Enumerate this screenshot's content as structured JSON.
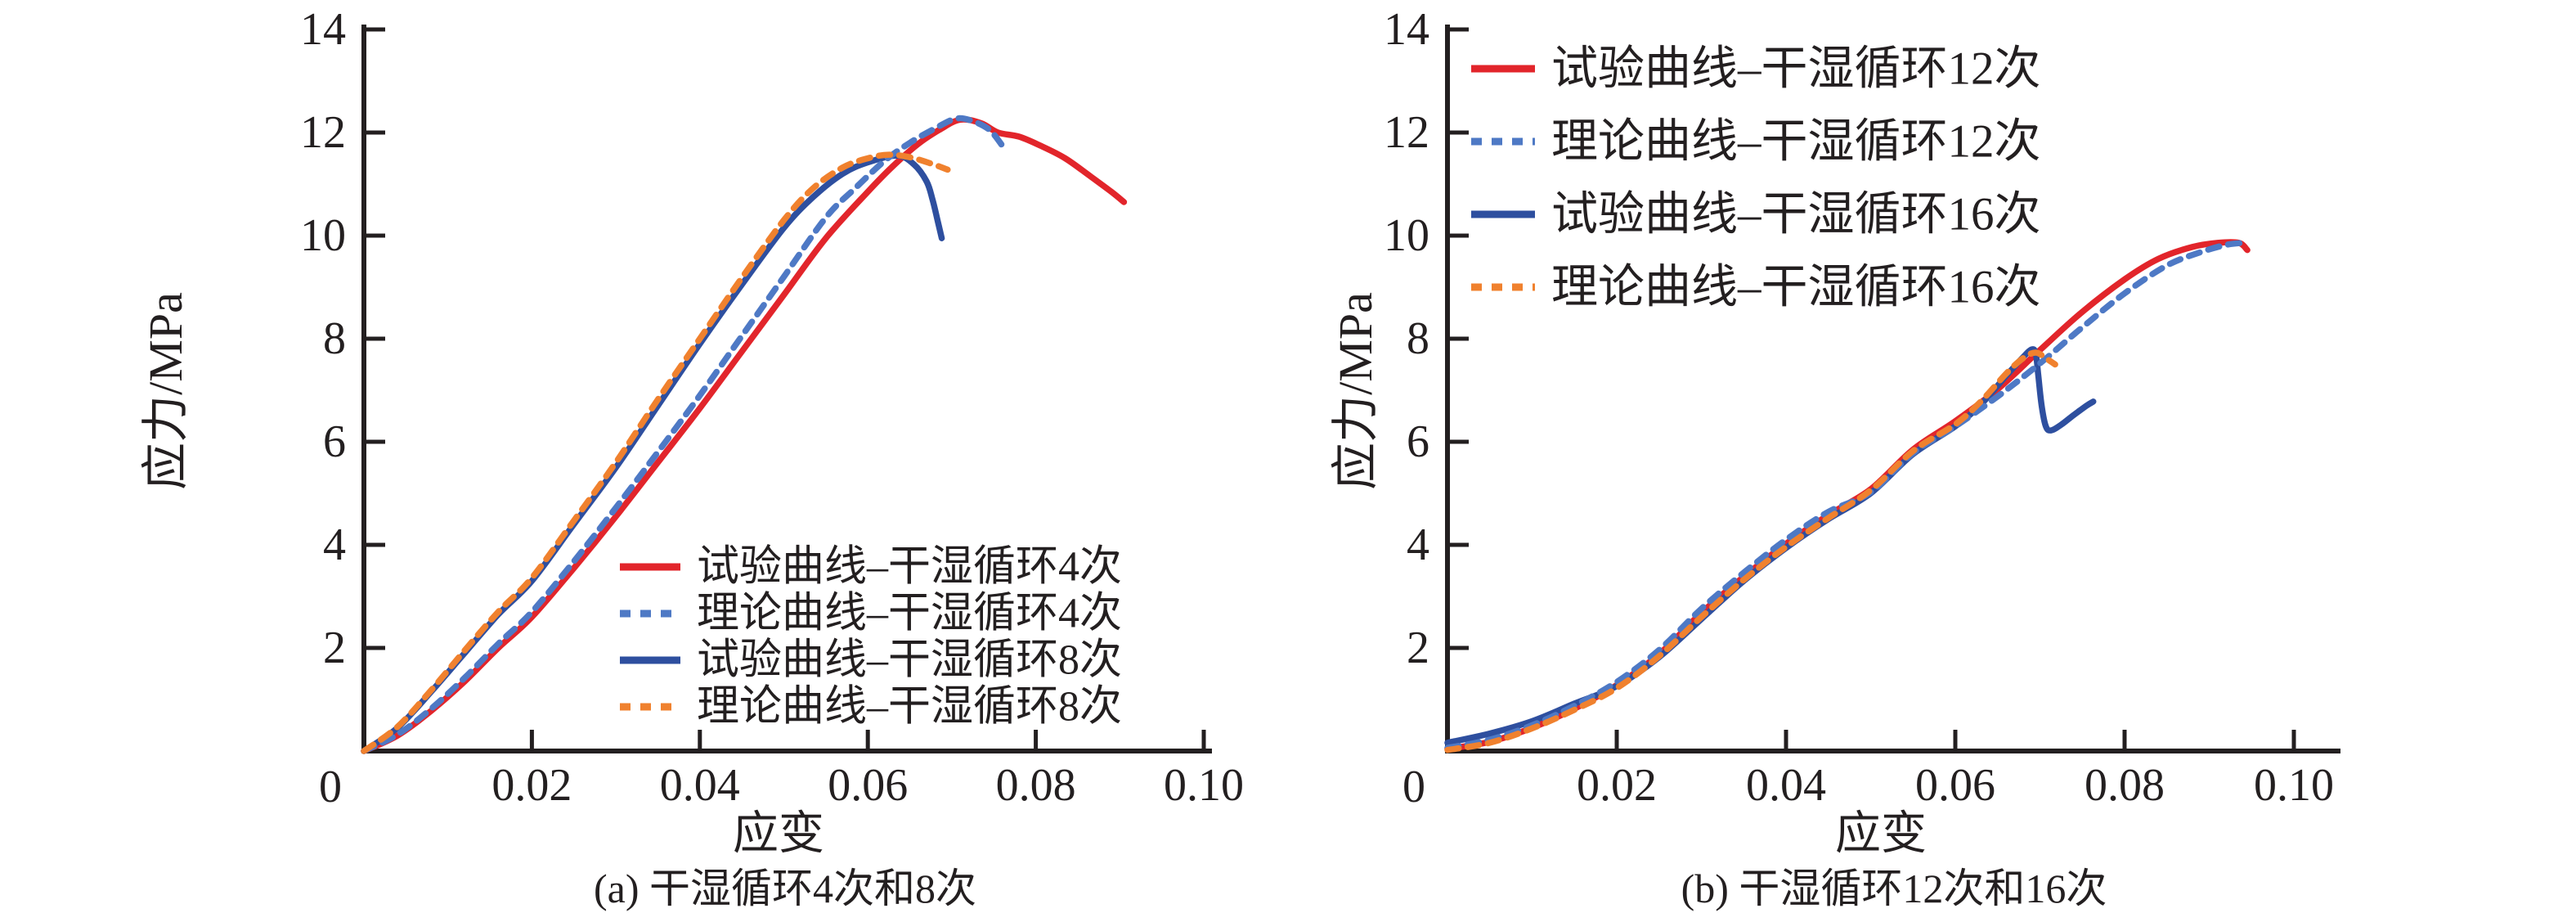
{
  "figure": {
    "background": "#ffffff",
    "ink_color": "#231f20"
  },
  "chart_data": [
    {
      "type": "line",
      "panel": "a",
      "caption": "(a) 干湿循环4次和8次",
      "xlabel": "应变",
      "ylabel": "应力/MPa",
      "xlim": [
        0,
        0.1
      ],
      "ylim": [
        0,
        14
      ],
      "origin_label": "0",
      "xticks": [
        {
          "value": 0.02,
          "label": "0.02"
        },
        {
          "value": 0.04,
          "label": "0.04"
        },
        {
          "value": 0.06,
          "label": "0.06"
        },
        {
          "value": 0.08,
          "label": "0.08"
        },
        {
          "value": 0.1,
          "label": "0.10"
        }
      ],
      "yticks": [
        {
          "value": 2,
          "label": "2"
        },
        {
          "value": 4,
          "label": "4"
        },
        {
          "value": 6,
          "label": "6"
        },
        {
          "value": 8,
          "label": "8"
        },
        {
          "value": 10,
          "label": "10"
        },
        {
          "value": 12,
          "label": "12"
        },
        {
          "value": 14,
          "label": "14"
        }
      ],
      "grid": false,
      "legend_position": "lower-right",
      "legend": [
        {
          "label": "试验曲线–干湿循环4次",
          "color": "#e2252b",
          "style": "solid"
        },
        {
          "label": "理论曲线–干湿循环4次",
          "color": "#4e79c5",
          "style": "dashed"
        },
        {
          "label": "试验曲线–干湿循环8次",
          "color": "#2e4f9f",
          "style": "solid"
        },
        {
          "label": "理论曲线–干湿循环8次",
          "color": "#f0812e",
          "style": "dashed"
        }
      ],
      "series": [
        {
          "name": "试验曲线–干湿循环4次",
          "role": "experimental",
          "cycles": 4,
          "color": "#e2252b",
          "style": "solid",
          "points": [
            [
              0,
              0
            ],
            [
              0.004,
              0.3
            ],
            [
              0.008,
              0.78
            ],
            [
              0.012,
              1.35
            ],
            [
              0.016,
              2.0
            ],
            [
              0.02,
              2.6
            ],
            [
              0.025,
              3.55
            ],
            [
              0.03,
              4.55
            ],
            [
              0.035,
              5.6
            ],
            [
              0.04,
              6.65
            ],
            [
              0.045,
              7.75
            ],
            [
              0.05,
              8.85
            ],
            [
              0.055,
              9.95
            ],
            [
              0.06,
              10.85
            ],
            [
              0.063,
              11.35
            ],
            [
              0.066,
              11.78
            ],
            [
              0.0685,
              12.05
            ],
            [
              0.071,
              12.25
            ],
            [
              0.0735,
              12.18
            ],
            [
              0.0755,
              12.0
            ],
            [
              0.078,
              11.92
            ],
            [
              0.0805,
              11.75
            ],
            [
              0.0835,
              11.5
            ],
            [
              0.0865,
              11.15
            ],
            [
              0.089,
              10.85
            ],
            [
              0.0905,
              10.65
            ]
          ]
        },
        {
          "name": "理论曲线–干湿循环4次",
          "role": "theoretical",
          "cycles": 4,
          "color": "#4e79c5",
          "style": "dashed",
          "points": [
            [
              0,
              0
            ],
            [
              0.004,
              0.32
            ],
            [
              0.008,
              0.82
            ],
            [
              0.012,
              1.42
            ],
            [
              0.016,
              2.08
            ],
            [
              0.02,
              2.7
            ],
            [
              0.025,
              3.68
            ],
            [
              0.03,
              4.72
            ],
            [
              0.035,
              5.8
            ],
            [
              0.04,
              6.9
            ],
            [
              0.045,
              8.05
            ],
            [
              0.05,
              9.2
            ],
            [
              0.055,
              10.35
            ],
            [
              0.0585,
              10.92
            ],
            [
              0.062,
              11.45
            ],
            [
              0.065,
              11.8
            ],
            [
              0.068,
              12.08
            ],
            [
              0.0705,
              12.27
            ],
            [
              0.0725,
              12.22
            ],
            [
              0.0745,
              12.05
            ],
            [
              0.076,
              11.75
            ]
          ]
        },
        {
          "name": "试验曲线–干湿循环8次",
          "role": "experimental",
          "cycles": 8,
          "color": "#2e4f9f",
          "style": "solid",
          "points": [
            [
              0,
              0
            ],
            [
              0.004,
              0.45
            ],
            [
              0.008,
              1.15
            ],
            [
              0.012,
              1.9
            ],
            [
              0.016,
              2.65
            ],
            [
              0.02,
              3.3
            ],
            [
              0.025,
              4.4
            ],
            [
              0.03,
              5.5
            ],
            [
              0.035,
              6.7
            ],
            [
              0.04,
              7.9
            ],
            [
              0.045,
              9.05
            ],
            [
              0.05,
              10.15
            ],
            [
              0.0535,
              10.75
            ],
            [
              0.057,
              11.2
            ],
            [
              0.06,
              11.42
            ],
            [
              0.0635,
              11.55
            ],
            [
              0.0655,
              11.38
            ],
            [
              0.067,
              11.05
            ],
            [
              0.0677,
              10.7
            ],
            [
              0.0683,
              10.3
            ],
            [
              0.0688,
              9.95
            ]
          ]
        },
        {
          "name": "理论曲线–干湿循环8次",
          "role": "theoretical",
          "cycles": 8,
          "color": "#f0812e",
          "style": "dashed",
          "points": [
            [
              0,
              0
            ],
            [
              0.004,
              0.47
            ],
            [
              0.008,
              1.18
            ],
            [
              0.012,
              1.95
            ],
            [
              0.016,
              2.7
            ],
            [
              0.02,
              3.36
            ],
            [
              0.025,
              4.47
            ],
            [
              0.03,
              5.6
            ],
            [
              0.035,
              6.82
            ],
            [
              0.04,
              8.0
            ],
            [
              0.045,
              9.18
            ],
            [
              0.05,
              10.3
            ],
            [
              0.0535,
              10.92
            ],
            [
              0.057,
              11.32
            ],
            [
              0.06,
              11.5
            ],
            [
              0.0625,
              11.57
            ],
            [
              0.065,
              11.52
            ],
            [
              0.0675,
              11.4
            ],
            [
              0.0695,
              11.28
            ]
          ]
        }
      ]
    },
    {
      "type": "line",
      "panel": "b",
      "caption": "(b) 干湿循环12次和16次",
      "xlabel": "应变",
      "ylabel": "应力/MPa",
      "xlim": [
        0,
        0.1
      ],
      "ylim": [
        0,
        14
      ],
      "origin_label": "0",
      "xticks": [
        {
          "value": 0.02,
          "label": "0.02"
        },
        {
          "value": 0.04,
          "label": "0.04"
        },
        {
          "value": 0.06,
          "label": "0.06"
        },
        {
          "value": 0.08,
          "label": "0.08"
        },
        {
          "value": 0.1,
          "label": "0.10"
        }
      ],
      "yticks": [
        {
          "value": 2,
          "label": "2"
        },
        {
          "value": 4,
          "label": "4"
        },
        {
          "value": 6,
          "label": "6"
        },
        {
          "value": 8,
          "label": "8"
        },
        {
          "value": 10,
          "label": "10"
        },
        {
          "value": 12,
          "label": "12"
        },
        {
          "value": 14,
          "label": "14"
        }
      ],
      "grid": false,
      "legend_position": "upper-left",
      "legend": [
        {
          "label": "试验曲线–干湿循环12次",
          "color": "#e2252b",
          "style": "solid"
        },
        {
          "label": "理论曲线–干湿循环12次",
          "color": "#4e79c5",
          "style": "dashed"
        },
        {
          "label": "试验曲线–干湿循环16次",
          "color": "#2e4f9f",
          "style": "solid"
        },
        {
          "label": "理论曲线–干湿循环16次",
          "color": "#f0812e",
          "style": "dashed"
        }
      ],
      "series": [
        {
          "name": "试验曲线–干湿循环12次",
          "role": "experimental",
          "cycles": 12,
          "color": "#e2252b",
          "style": "solid",
          "points": [
            [
              0,
              0.04
            ],
            [
              0.005,
              0.18
            ],
            [
              0.01,
              0.45
            ],
            [
              0.015,
              0.82
            ],
            [
              0.02,
              1.28
            ],
            [
              0.025,
              1.88
            ],
            [
              0.03,
              2.68
            ],
            [
              0.035,
              3.38
            ],
            [
              0.04,
              4.02
            ],
            [
              0.045,
              4.58
            ],
            [
              0.05,
              5.08
            ],
            [
              0.055,
              5.85
            ],
            [
              0.06,
              6.4
            ],
            [
              0.065,
              7.02
            ],
            [
              0.07,
              7.78
            ],
            [
              0.075,
              8.52
            ],
            [
              0.08,
              9.15
            ],
            [
              0.084,
              9.55
            ],
            [
              0.088,
              9.78
            ],
            [
              0.091,
              9.86
            ],
            [
              0.0935,
              9.86
            ],
            [
              0.0945,
              9.72
            ]
          ]
        },
        {
          "name": "理论曲线–干湿循环12次",
          "role": "theoretical",
          "cycles": 12,
          "color": "#4e79c5",
          "style": "dashed",
          "points": [
            [
              0,
              0.06
            ],
            [
              0.005,
              0.22
            ],
            [
              0.01,
              0.5
            ],
            [
              0.015,
              0.88
            ],
            [
              0.02,
              1.34
            ],
            [
              0.025,
              1.96
            ],
            [
              0.03,
              2.76
            ],
            [
              0.035,
              3.46
            ],
            [
              0.04,
              4.1
            ],
            [
              0.045,
              4.64
            ],
            [
              0.05,
              5.02
            ],
            [
              0.055,
              5.78
            ],
            [
              0.06,
              6.3
            ],
            [
              0.065,
              6.88
            ],
            [
              0.07,
              7.52
            ],
            [
              0.075,
              8.22
            ],
            [
              0.08,
              8.88
            ],
            [
              0.085,
              9.42
            ],
            [
              0.089,
              9.68
            ],
            [
              0.092,
              9.82
            ],
            [
              0.094,
              9.86
            ]
          ]
        },
        {
          "name": "试验曲线–干湿循环16次",
          "role": "experimental",
          "cycles": 16,
          "color": "#2e4f9f",
          "style": "solid",
          "points": [
            [
              0,
              0.16
            ],
            [
              0.005,
              0.34
            ],
            [
              0.01,
              0.58
            ],
            [
              0.015,
              0.92
            ],
            [
              0.02,
              1.26
            ],
            [
              0.025,
              1.82
            ],
            [
              0.03,
              2.56
            ],
            [
              0.035,
              3.3
            ],
            [
              0.04,
              3.94
            ],
            [
              0.045,
              4.5
            ],
            [
              0.05,
              5.0
            ],
            [
              0.055,
              5.76
            ],
            [
              0.06,
              6.3
            ],
            [
              0.063,
              6.72
            ],
            [
              0.066,
              7.28
            ],
            [
              0.068,
              7.64
            ],
            [
              0.069,
              7.79
            ],
            [
              0.0695,
              7.72
            ],
            [
              0.0698,
              7.3
            ],
            [
              0.0702,
              6.7
            ],
            [
              0.0707,
              6.3
            ],
            [
              0.0713,
              6.22
            ],
            [
              0.0725,
              6.33
            ],
            [
              0.074,
              6.52
            ],
            [
              0.0755,
              6.7
            ],
            [
              0.0763,
              6.78
            ]
          ]
        },
        {
          "name": "理论曲线–干湿循环16次",
          "role": "theoretical",
          "cycles": 16,
          "color": "#f0812e",
          "style": "dashed",
          "points": [
            [
              0,
              0.02
            ],
            [
              0.005,
              0.16
            ],
            [
              0.01,
              0.44
            ],
            [
              0.015,
              0.8
            ],
            [
              0.02,
              1.22
            ],
            [
              0.025,
              1.84
            ],
            [
              0.03,
              2.6
            ],
            [
              0.035,
              3.32
            ],
            [
              0.04,
              3.96
            ],
            [
              0.045,
              4.52
            ],
            [
              0.05,
              5.06
            ],
            [
              0.055,
              5.82
            ],
            [
              0.06,
              6.34
            ],
            [
              0.063,
              6.78
            ],
            [
              0.066,
              7.32
            ],
            [
              0.068,
              7.62
            ],
            [
              0.0695,
              7.73
            ],
            [
              0.0707,
              7.62
            ],
            [
              0.0718,
              7.5
            ]
          ]
        }
      ]
    }
  ]
}
